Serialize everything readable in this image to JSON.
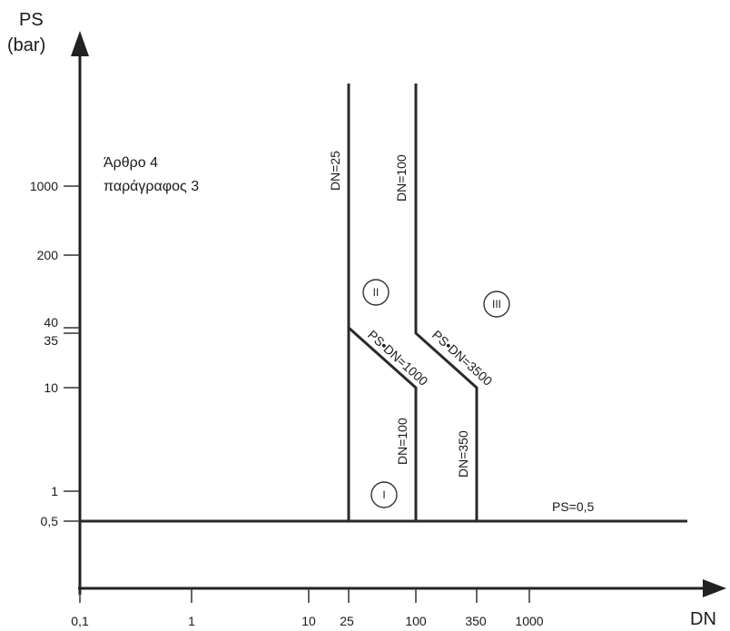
{
  "y_axis": {
    "title_line1": "PS",
    "title_line2": "(bar)",
    "ticks": [
      "0,5",
      "1",
      "10",
      "35",
      "40",
      "200",
      "1000"
    ]
  },
  "x_axis": {
    "title": "DN",
    "ticks": [
      "0,1",
      "1",
      "10",
      "25",
      "100",
      "350",
      "1000"
    ]
  },
  "note": {
    "line1": "Άρθρο 4",
    "line2": "παράγραφος 3"
  },
  "boundary_labels": {
    "dn25": "DN=25",
    "dn100_top": "DN=100",
    "dn100_bottom": "DN=100",
    "dn350": "DN=350",
    "ps_dn_1000": "PS•DN=1000",
    "ps_dn_3500": "PS•DN=3500",
    "ps_05": "PS=0,5"
  },
  "regions": {
    "i": "I",
    "ii": "II",
    "iii": "III"
  }
}
